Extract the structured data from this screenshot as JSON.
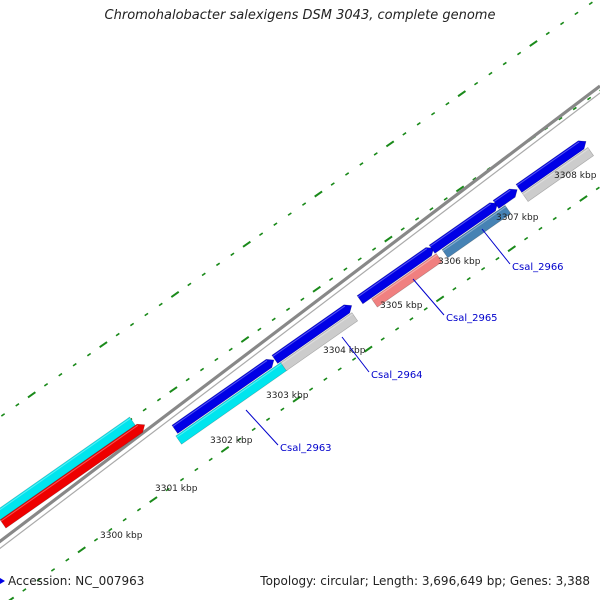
{
  "title": "Chromohalobacter salexigens DSM 3043, complete genome",
  "footer": {
    "accession_label": "Accession:",
    "accession": "NC_007963",
    "topology_label": "Topology:",
    "topology": "circular",
    "length_label": "Length:",
    "length": "3,696,649 bp",
    "genes_label": "Genes:",
    "genes": "3,388"
  },
  "colors": {
    "backbone": "#888888",
    "tick": "#1a8a1a",
    "forward_cds": "#0000e6",
    "cyan_feature": "#00e5ee",
    "red_feature": "#ee0000",
    "pink_feature": "#f08080",
    "gray_feature": "#cccccc",
    "steelblue_feature": "#4682b4",
    "gene_label": "#0000cc"
  },
  "ruler": [
    {
      "label": "3300 kbp"
    },
    {
      "label": "3301 kbp"
    },
    {
      "label": "3302 kbp"
    },
    {
      "label": "3303 kbp"
    },
    {
      "label": "3304 kbp"
    },
    {
      "label": "3305 kbp"
    },
    {
      "label": "3306 kbp"
    },
    {
      "label": "3307 kbp"
    },
    {
      "label": "3308 kbp"
    }
  ],
  "genes": [
    {
      "name": "Csal_2963"
    },
    {
      "name": "Csal_2964"
    },
    {
      "name": "Csal_2965"
    },
    {
      "name": "Csal_2966"
    }
  ]
}
